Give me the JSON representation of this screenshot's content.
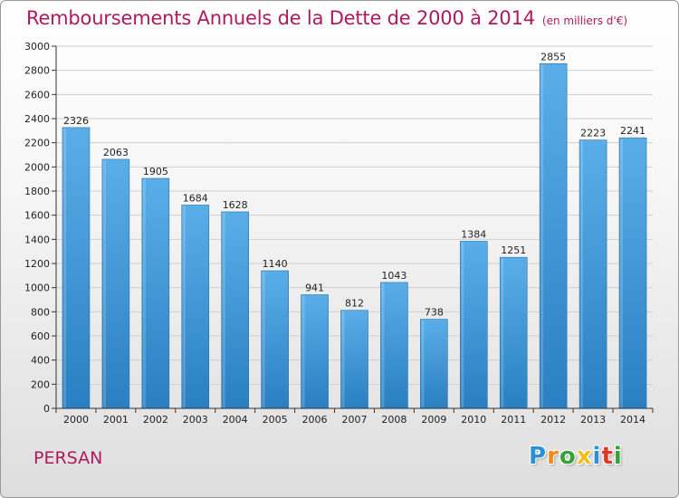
{
  "title": "Remboursements Annuels de la Dette de 2000 à 2014",
  "unit": "(en milliers d'€)",
  "city": "PERSAN",
  "logo": {
    "letters": [
      "P",
      "r",
      "o",
      "x",
      "i",
      "t",
      "i"
    ],
    "colors": [
      "#2f8fd6",
      "#f08a1c",
      "#3aa13a",
      "#f2c01c",
      "#2f8fd6",
      "#e2362b",
      "#3aa13a"
    ]
  },
  "colors": {
    "title": "#b0195c",
    "bar_top": "#5aaee8",
    "bar_bottom": "#2a7fc2",
    "grid": "#cfcfcf",
    "axis": "#333333"
  },
  "chart_data": {
    "type": "bar",
    "categories": [
      "2000",
      "2001",
      "2002",
      "2003",
      "2004",
      "2005",
      "2006",
      "2007",
      "2008",
      "2009",
      "2010",
      "2011",
      "2012",
      "2013",
      "2014"
    ],
    "values": [
      2326,
      2063,
      1905,
      1684,
      1628,
      1140,
      941,
      812,
      1043,
      738,
      1384,
      1251,
      2855,
      2223,
      2241
    ],
    "ylim": [
      0,
      3000
    ],
    "yticks": [
      0,
      200,
      400,
      600,
      800,
      1000,
      1200,
      1400,
      1600,
      1800,
      2000,
      2200,
      2400,
      2600,
      2800,
      3000
    ],
    "grid": true,
    "data_labels": true,
    "legend": "none"
  }
}
